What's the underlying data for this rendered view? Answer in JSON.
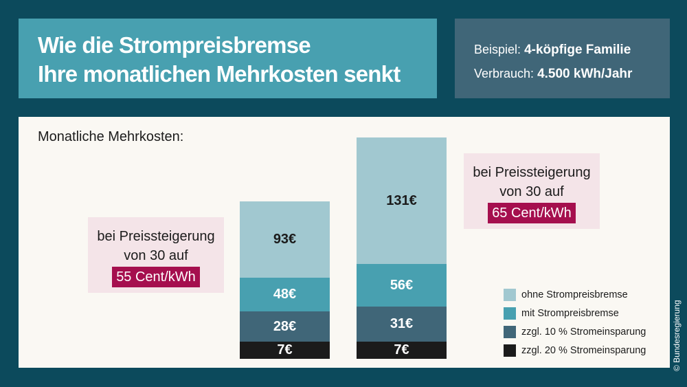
{
  "title_lines": [
    "Wie die Strompreisbremse",
    "Ihre monatlichen Mehrkosten senkt"
  ],
  "info": {
    "example_label": "Beispiel:",
    "example_value": "4-köpfige Familie",
    "usage_label": "Verbrauch:",
    "usage_value": "4.500 kWh/Jahr"
  },
  "copyright": "© Bundesregierung",
  "chart_data": {
    "type": "bar",
    "title": "Monatliche Mehrkosten:",
    "unit": "€",
    "categories": [
      "bei Preissteigerung von 30 auf 55 Cent/kWh",
      "bei Preissteigerung von 30 auf 65 Cent/kWh"
    ],
    "annotations": [
      {
        "line1": "bei Preissteigerung",
        "line2": "von 30 auf",
        "highlight": "55 Cent/kWh"
      },
      {
        "line1": "bei Preissteigerung",
        "line2": "von 30 auf",
        "highlight": "65 Cent/kWh"
      }
    ],
    "series": [
      {
        "name": "ohne Strompreisbremse",
        "color": "#a1c8d0",
        "values": [
          93,
          131
        ],
        "labels": [
          "93€",
          "131€"
        ]
      },
      {
        "name": "mit Strompreisbremse",
        "color": "#48a0b0",
        "values": [
          48,
          56
        ],
        "labels": [
          "48€",
          "56€"
        ]
      },
      {
        "name": "zzgl. 10 % Stromeinsparung",
        "color": "#406678",
        "values": [
          28,
          31
        ],
        "labels": [
          "28€",
          "31€"
        ]
      },
      {
        "name": "zzgl. 20 % Stromeinsparung",
        "color": "#1b1b1b",
        "values": [
          7,
          7
        ],
        "labels": [
          "7€",
          "7€"
        ]
      }
    ],
    "layout": "overlapping",
    "legend": "bottom-right",
    "grid": false,
    "highlight_color": "#a50f4e"
  }
}
